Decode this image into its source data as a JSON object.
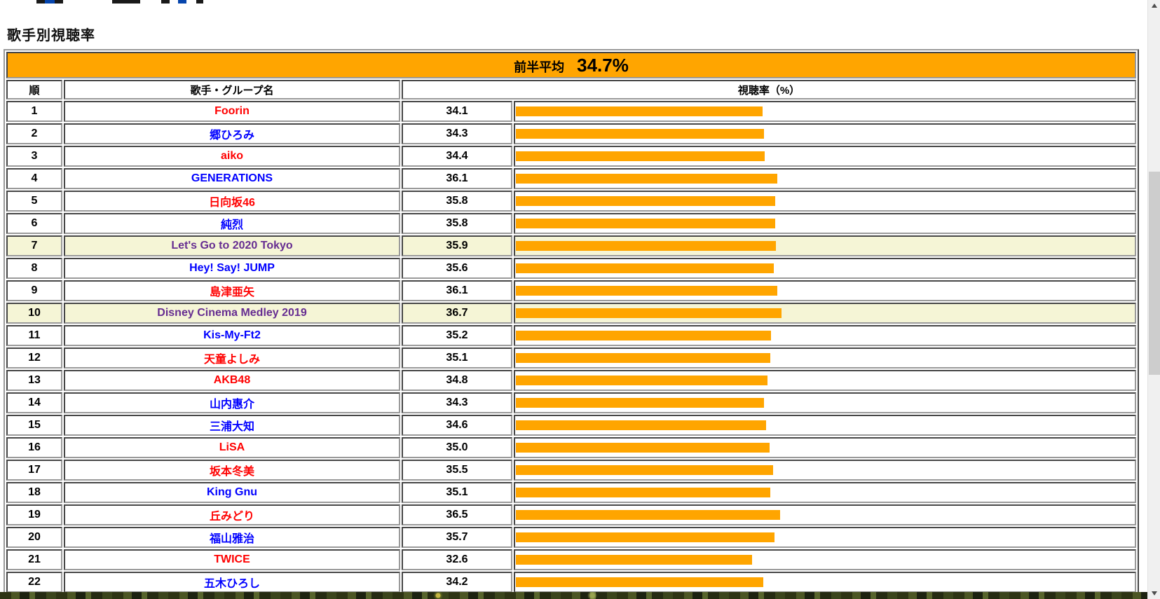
{
  "page": {
    "heading": "歌手別視聴率"
  },
  "caption": {
    "label": "前半平均",
    "value": "34.7%"
  },
  "table": {
    "headers": {
      "rank": "順",
      "name": "歌手・グループ名",
      "rating": "視聴率（%）"
    },
    "rows": [
      {
        "rank": "1",
        "name": "Foorin",
        "team": "red",
        "value": 34.1,
        "special": false
      },
      {
        "rank": "2",
        "name": "郷ひろみ",
        "team": "blue",
        "value": 34.3,
        "special": false
      },
      {
        "rank": "3",
        "name": "aiko",
        "team": "red",
        "value": 34.4,
        "special": false
      },
      {
        "rank": "4",
        "name": "GENERATIONS",
        "team": "blue",
        "value": 36.1,
        "special": false
      },
      {
        "rank": "5",
        "name": "日向坂46",
        "team": "red",
        "value": 35.8,
        "special": false
      },
      {
        "rank": "6",
        "name": "純烈",
        "team": "blue",
        "value": 35.8,
        "special": false
      },
      {
        "rank": "7",
        "name": "Let's Go to 2020 Tokyo",
        "team": "special",
        "value": 35.9,
        "special": true
      },
      {
        "rank": "8",
        "name": "Hey! Say! JUMP",
        "team": "blue",
        "value": 35.6,
        "special": false
      },
      {
        "rank": "9",
        "name": "島津亜矢",
        "team": "red",
        "value": 36.1,
        "special": false
      },
      {
        "rank": "10",
        "name": "Disney Cinema Medley 2019",
        "team": "special",
        "value": 36.7,
        "special": true
      },
      {
        "rank": "11",
        "name": "Kis-My-Ft2",
        "team": "blue",
        "value": 35.2,
        "special": false
      },
      {
        "rank": "12",
        "name": "天童よしみ",
        "team": "red",
        "value": 35.1,
        "special": false
      },
      {
        "rank": "13",
        "name": "AKB48",
        "team": "red",
        "value": 34.8,
        "special": false
      },
      {
        "rank": "14",
        "name": "山内惠介",
        "team": "blue",
        "value": 34.3,
        "special": false
      },
      {
        "rank": "15",
        "name": "三浦大知",
        "team": "blue",
        "value": 34.6,
        "special": false
      },
      {
        "rank": "16",
        "name": "LiSA",
        "team": "red",
        "value": 35.0,
        "special": false
      },
      {
        "rank": "17",
        "name": "坂本冬美",
        "team": "red",
        "value": 35.5,
        "special": false
      },
      {
        "rank": "18",
        "name": "King Gnu",
        "team": "blue",
        "value": 35.1,
        "special": false
      },
      {
        "rank": "19",
        "name": "丘みどり",
        "team": "red",
        "value": 36.5,
        "special": false
      },
      {
        "rank": "20",
        "name": "福山雅治",
        "team": "blue",
        "value": 35.7,
        "special": false
      },
      {
        "rank": "21",
        "name": "TWICE",
        "team": "red",
        "value": 32.6,
        "special": false
      },
      {
        "rank": "22",
        "name": "五木ひろし",
        "team": "blue",
        "value": 34.2,
        "special": false
      }
    ]
  },
  "chart_data": {
    "type": "bar",
    "title": "歌手別視聴率 前半平均 34.7%",
    "categories": [
      "Foorin",
      "郷ひろみ",
      "aiko",
      "GENERATIONS",
      "日向坂46",
      "純烈",
      "Let's Go to 2020 Tokyo",
      "Hey! Say! JUMP",
      "島津亜矢",
      "Disney Cinema Medley 2019",
      "Kis-My-Ft2",
      "天童よしみ",
      "AKB48",
      "山内惠介",
      "三浦大知",
      "LiSA",
      "坂本冬美",
      "King Gnu",
      "丘みどり",
      "福山雅治",
      "TWICE",
      "五木ひろし"
    ],
    "values": [
      34.1,
      34.3,
      34.4,
      36.1,
      35.8,
      35.8,
      35.9,
      35.6,
      36.1,
      36.7,
      35.2,
      35.1,
      34.8,
      34.3,
      34.6,
      35.0,
      35.5,
      35.1,
      36.5,
      35.7,
      32.6,
      34.2
    ],
    "xlabel": "視聴率（%）",
    "ylabel": "歌手・グループ名",
    "average_first_half": 34.7
  },
  "colors": {
    "accent_orange": "#FFA500",
    "team": {
      "red": "#FF0000",
      "blue": "#0000FF",
      "special": "#662D91"
    },
    "special_row_bg": "#F5F5D6"
  }
}
